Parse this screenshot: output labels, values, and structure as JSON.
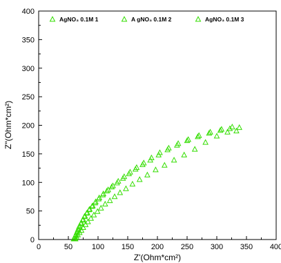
{
  "chart_data": {
    "type": "scatter",
    "title": "",
    "xlabel": "Z'(Ohm*cm²)",
    "ylabel": "Z\"(Ohm*cm²)",
    "xlim": [
      0,
      400
    ],
    "ylim": [
      0,
      400
    ],
    "xticks": [
      0,
      50,
      100,
      150,
      200,
      250,
      300,
      350,
      400
    ],
    "yticks": [
      0,
      50,
      100,
      150,
      200,
      250,
      300,
      350,
      400
    ],
    "grid": false,
    "legend_position": "top-left",
    "marker": "open-triangle",
    "color": "#33dd00",
    "series": [
      {
        "name": "AgNO₃ 0.1M 1",
        "x": [
          60,
          62,
          64,
          66,
          68,
          71,
          74,
          77,
          81,
          85,
          90,
          95,
          101,
          108,
          115,
          123,
          132,
          142,
          152,
          163,
          175,
          188,
          202,
          217,
          233,
          250,
          268,
          287,
          306,
          322,
          338
        ],
        "y": [
          2,
          7,
          12,
          17,
          22,
          28,
          34,
          40,
          46,
          52,
          58,
          64,
          71,
          78,
          85,
          92,
          99,
          107,
          115,
          123,
          131,
          139,
          148,
          157,
          165,
          173,
          180,
          186,
          191,
          194,
          196
        ]
      },
      {
        "name": "A gNO₃ 0.1M 2",
        "x": [
          59,
          61,
          63,
          65,
          67,
          69,
          72,
          75,
          78,
          82,
          86,
          91,
          96,
          102,
          109,
          117,
          125,
          134,
          144,
          154,
          165,
          177,
          190,
          204,
          219,
          235,
          252,
          270,
          289,
          308,
          326
        ],
        "y": [
          1,
          5,
          9,
          14,
          19,
          24,
          29,
          35,
          41,
          47,
          53,
          59,
          66,
          73,
          80,
          87,
          94,
          102,
          110,
          118,
          126,
          134,
          143,
          152,
          160,
          168,
          175,
          182,
          188,
          193,
          197
        ]
      },
      {
        "name": "AgNO₃ 0.1M 3",
        "x": [
          62,
          64,
          66,
          69,
          72,
          75,
          79,
          83,
          88,
          93,
          99,
          105,
          112,
          120,
          128,
          137,
          147,
          158,
          170,
          183,
          197,
          212,
          228,
          245,
          263,
          281,
          300,
          318,
          333
        ],
        "y": [
          1,
          4,
          8,
          12,
          16,
          21,
          26,
          31,
          37,
          43,
          49,
          55,
          62,
          68,
          75,
          82,
          89,
          97,
          105,
          113,
          122,
          130,
          139,
          148,
          158,
          170,
          181,
          188,
          190
        ]
      }
    ]
  }
}
